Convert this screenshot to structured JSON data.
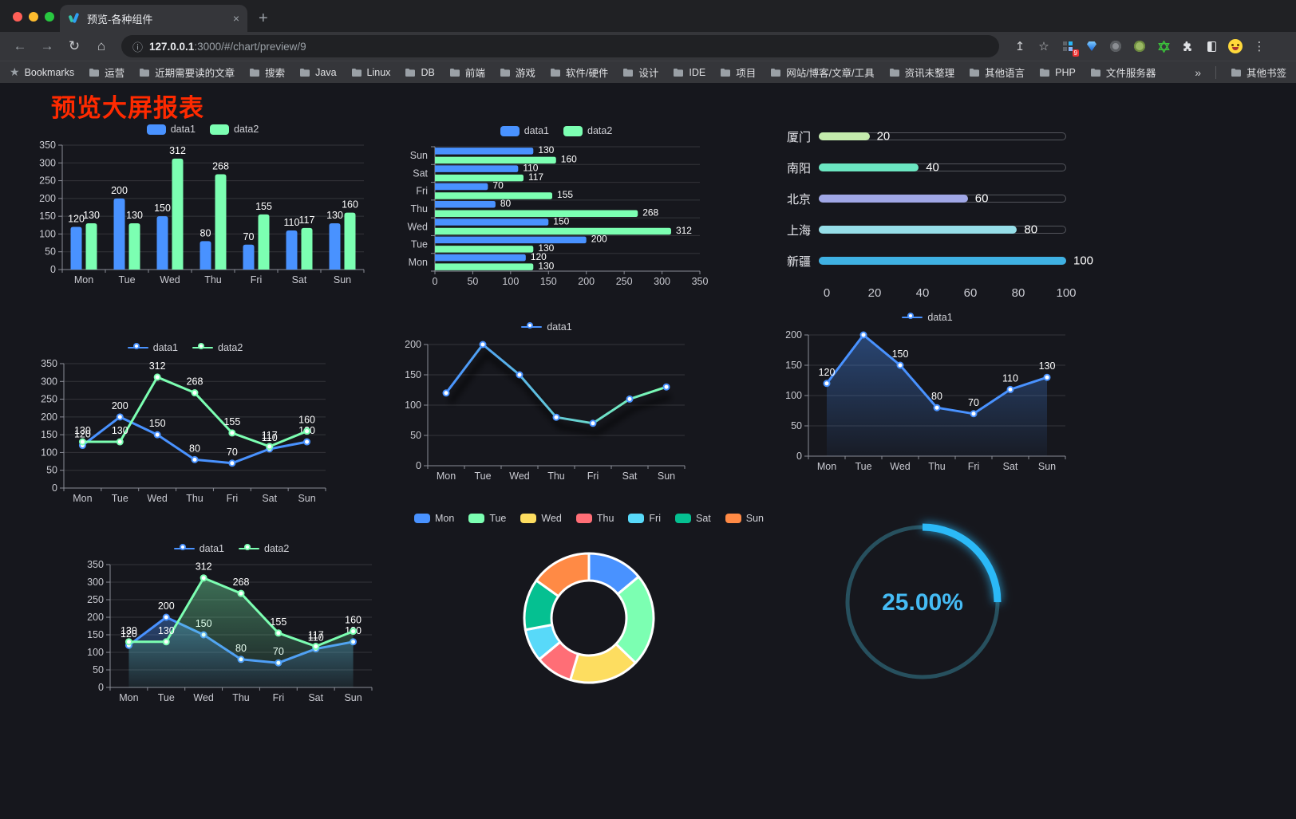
{
  "browser": {
    "tab": {
      "title": "预览-各种组件",
      "close_glyph": "×",
      "new_tab_glyph": "+"
    },
    "address": {
      "url_host": "127.0.0.1",
      "url_rest": ":3000/#/chart/preview/9"
    },
    "nav": {
      "back": "←",
      "forward": "→",
      "reload": "↻",
      "home": "⌂",
      "site_info": "ⓘ",
      "share": "↥",
      "bookmark_star": "☆",
      "menu": "⋮"
    },
    "extension_badge": "9",
    "bookmarks_bar": {
      "star_glyph": "★",
      "label": "Bookmarks",
      "items": [
        "运营",
        "近期需要读的文章",
        "搜索",
        "Java",
        "Linux",
        "DB",
        "前端",
        "游戏",
        "软件/硬件",
        "设计",
        "IDE",
        "项目",
        "网站/博客/文章/工具",
        "资讯未整理",
        "其他语言",
        "PHP",
        "文件服务器"
      ],
      "overflow_glyph": "»",
      "other_bookmarks": "其他书签"
    }
  },
  "page": {
    "title": "预览大屏报表",
    "title_color": "#ff2a00",
    "background": "#16171d"
  },
  "chart_data": [
    {
      "id": "bar_vertical",
      "type": "bar",
      "categories": [
        "Mon",
        "Tue",
        "Wed",
        "Thu",
        "Fri",
        "Sat",
        "Sun"
      ],
      "series": [
        {
          "name": "data1",
          "color": "#4992ff",
          "values": [
            120,
            200,
            150,
            80,
            70,
            110,
            130
          ]
        },
        {
          "name": "data2",
          "color": "#7cffb2",
          "values": [
            130,
            130,
            312,
            268,
            155,
            117,
            160
          ]
        }
      ],
      "yticks": [
        0,
        50,
        100,
        150,
        200,
        250,
        300,
        350
      ],
      "ylim": [
        0,
        350
      ],
      "show_labels": true,
      "legend_position": "top",
      "legend_icon": "roundRect",
      "grid": true
    },
    {
      "id": "bar_horizontal",
      "type": "hbar",
      "categories": [
        "Sun",
        "Sat",
        "Fri",
        "Thu",
        "Wed",
        "Tue",
        "Mon"
      ],
      "series": [
        {
          "name": "data1",
          "color": "#4992ff",
          "values": [
            130,
            110,
            70,
            80,
            150,
            200,
            120
          ]
        },
        {
          "name": "data2",
          "color": "#7cffb2",
          "values": [
            160,
            117,
            155,
            268,
            312,
            130,
            130
          ]
        }
      ],
      "xticks": [
        0,
        50,
        100,
        150,
        200,
        250,
        300,
        350
      ],
      "xlim": [
        0,
        350
      ],
      "show_labels": true,
      "legend_position": "top",
      "legend_icon": "roundRect",
      "grid": true
    },
    {
      "id": "city_progress",
      "type": "progress",
      "rows": [
        {
          "label": "厦门",
          "value": 20,
          "color": "#c4ebad"
        },
        {
          "label": "南阳",
          "value": 40,
          "color": "#6be6c1"
        },
        {
          "label": "北京",
          "value": 60,
          "color": "#a0a7e6"
        },
        {
          "label": "上海",
          "value": 80,
          "color": "#96dee8"
        },
        {
          "label": "新疆",
          "value": 100,
          "color": "#3fb1e3"
        }
      ],
      "xticks": [
        0,
        20,
        40,
        60,
        80,
        100
      ],
      "max": 100
    },
    {
      "id": "line_two_series",
      "type": "line",
      "categories": [
        "Mon",
        "Tue",
        "Wed",
        "Thu",
        "Fri",
        "Sat",
        "Sun"
      ],
      "series": [
        {
          "name": "data1",
          "color": "#4992ff",
          "values": [
            120,
            200,
            150,
            80,
            70,
            110,
            130
          ],
          "labels": true
        },
        {
          "name": "data2",
          "color": "#7cffb2",
          "values": [
            130,
            130,
            312,
            268,
            155,
            117,
            160
          ],
          "labels": true
        }
      ],
      "yticks": [
        0,
        50,
        100,
        150,
        200,
        250,
        300,
        350
      ],
      "ylim": [
        0,
        350
      ],
      "legend_position": "top",
      "legend_icon": "line",
      "grid": true
    },
    {
      "id": "line_gradient",
      "type": "line",
      "categories": [
        "Mon",
        "Tue",
        "Wed",
        "Thu",
        "Fri",
        "Sat",
        "Sun"
      ],
      "series": [
        {
          "name": "data1",
          "color": "#4992ff",
          "gradient": [
            "#4992ff",
            "#7cffb2"
          ],
          "shadow": true,
          "values": [
            120,
            200,
            150,
            80,
            70,
            110,
            130
          ],
          "labels": false
        }
      ],
      "yticks": [
        0,
        50,
        100,
        150,
        200
      ],
      "ylim": [
        0,
        200
      ],
      "legend_position": "top",
      "legend_icon": "line",
      "grid": true
    },
    {
      "id": "line_area",
      "type": "line",
      "categories": [
        "Mon",
        "Tue",
        "Wed",
        "Thu",
        "Fri",
        "Sat",
        "Sun"
      ],
      "series": [
        {
          "name": "data1",
          "color": "#4992ff",
          "area": true,
          "values": [
            120,
            200,
            150,
            80,
            70,
            110,
            130
          ],
          "labels": true
        }
      ],
      "yticks": [
        0,
        50,
        100,
        150,
        200
      ],
      "ylim": [
        0,
        200
      ],
      "legend_position": "top",
      "legend_icon": "line",
      "grid": true
    },
    {
      "id": "line_two_area",
      "type": "line",
      "categories": [
        "Mon",
        "Tue",
        "Wed",
        "Thu",
        "Fri",
        "Sat",
        "Sun"
      ],
      "series": [
        {
          "name": "data1",
          "color": "#4992ff",
          "area": true,
          "values": [
            120,
            200,
            150,
            80,
            70,
            110,
            130
          ],
          "labels": true
        },
        {
          "name": "data2",
          "color": "#7cffb2",
          "area": true,
          "values": [
            130,
            130,
            312,
            268,
            155,
            117,
            160
          ],
          "labels": true
        }
      ],
      "yticks": [
        0,
        50,
        100,
        150,
        200,
        250,
        300,
        350
      ],
      "ylim": [
        0,
        350
      ],
      "legend_position": "top",
      "legend_icon": "line",
      "grid": true
    },
    {
      "id": "donut_week",
      "type": "pie",
      "categories": [
        "Mon",
        "Tue",
        "Wed",
        "Thu",
        "Fri",
        "Sat",
        "Sun"
      ],
      "values": [
        120,
        200,
        150,
        80,
        70,
        110,
        130
      ],
      "colors": [
        "#4992ff",
        "#7cffb2",
        "#fddd60",
        "#ff6e76",
        "#58d9f9",
        "#05c091",
        "#ff8a45"
      ],
      "inner_radius_ratio": 0.58,
      "border_color": "#ffffff",
      "legend_position": "top",
      "legend_icon": "roundRect"
    },
    {
      "id": "gauge_percent",
      "type": "gauge",
      "value": 25,
      "max": 100,
      "label": "25.00%",
      "color": "#2bb9f7",
      "track_color": "#27505e",
      "text_color": "#45bbf4"
    }
  ]
}
